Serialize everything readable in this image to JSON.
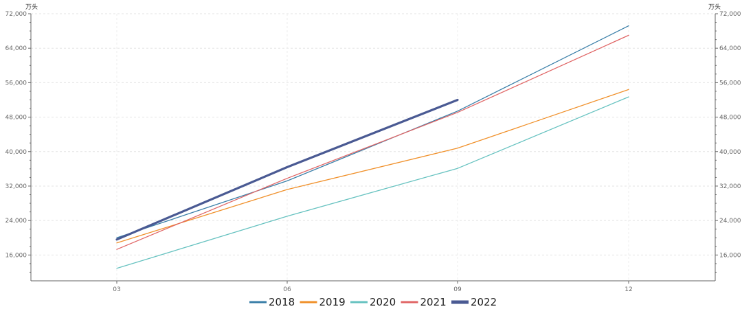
{
  "chart_data": {
    "type": "line",
    "unit_label_left": "万头",
    "unit_label_right": "万头",
    "categories": [
      "03",
      "06",
      "09",
      "12"
    ],
    "ylim": [
      10000,
      72000
    ],
    "yticks": [
      16000,
      24000,
      32000,
      40000,
      48000,
      56000,
      64000,
      72000
    ],
    "ytick_labels": [
      "16,000",
      "24,000",
      "32,000",
      "40,000",
      "48,000",
      "56,000",
      "64,000",
      "72,000"
    ],
    "grid": true,
    "legend_position": "bottom",
    "series": [
      {
        "name": "2018",
        "color": "#3a7fa8",
        "width": 1.3,
        "values": [
          20000,
          33200,
          49400,
          69200
        ]
      },
      {
        "name": "2019",
        "color": "#f0902a",
        "width": 1.3,
        "values": [
          18800,
          31200,
          40800,
          54400
        ]
      },
      {
        "name": "2020",
        "color": "#66c2c0",
        "width": 1.3,
        "values": [
          12900,
          25000,
          36100,
          52700
        ]
      },
      {
        "name": "2021",
        "color": "#e06666",
        "width": 1.3,
        "values": [
          17300,
          33800,
          49100,
          67000
        ]
      },
      {
        "name": "2022",
        "color": "#4a5a93",
        "width": 3.2,
        "values": [
          19600,
          36400,
          52000,
          null
        ]
      }
    ]
  }
}
